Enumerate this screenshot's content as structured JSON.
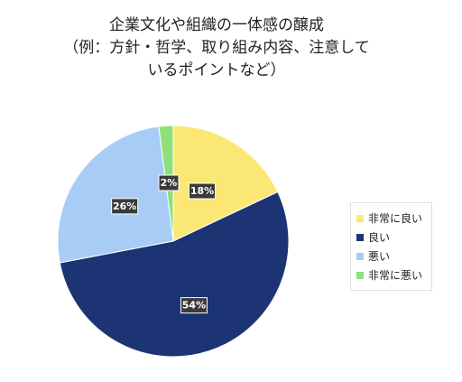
{
  "title_lines": [
    "企業文化や組織の一体感の醸成",
    "（例：方針・哲学、取り組み内容、注意して",
    "いるポイントなど）"
  ],
  "chart_data": {
    "type": "pie",
    "categories": [
      "非常に良い",
      "良い",
      "悪い",
      "非常に悪い"
    ],
    "values": [
      18,
      54,
      26,
      2
    ],
    "data_labels": [
      "18%",
      "54%",
      "26%",
      "2%"
    ],
    "colors": [
      "#fbe874",
      "#1c3474",
      "#a8ccf6",
      "#8ee07a"
    ],
    "legend_position": "right",
    "start_angle": "12 o'clock, clockwise"
  }
}
